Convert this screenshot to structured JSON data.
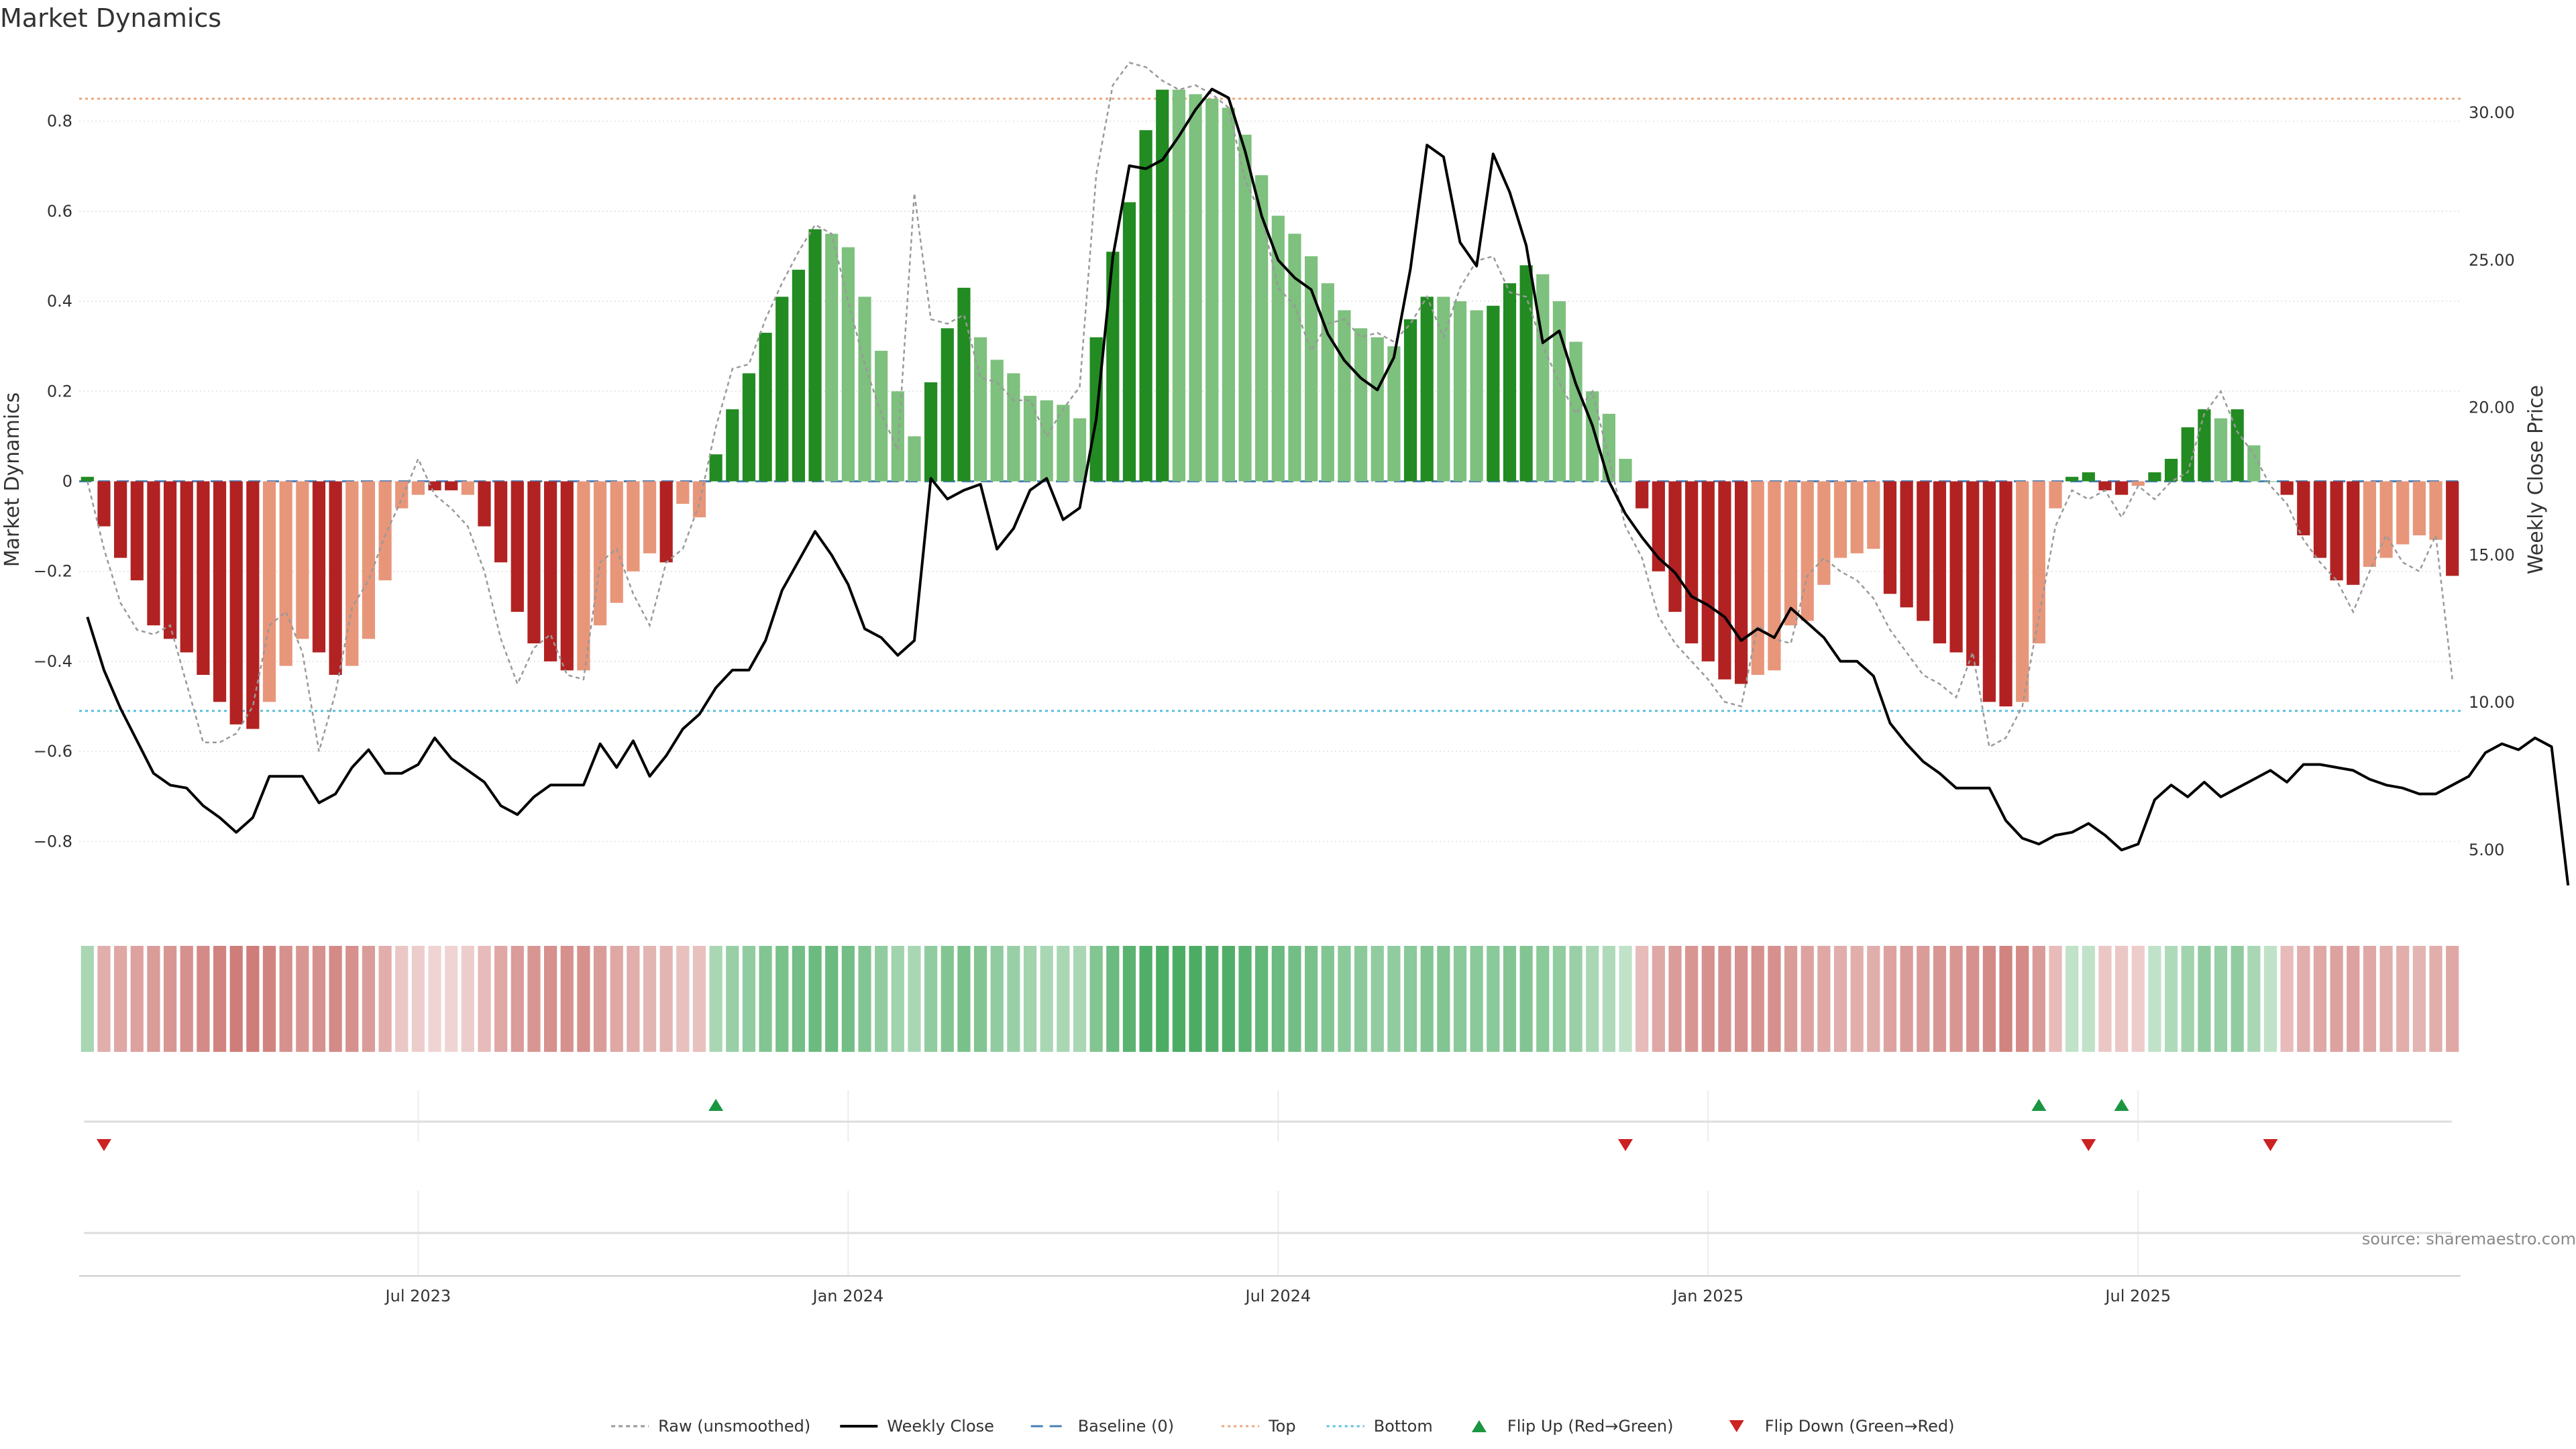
{
  "title": "Market Dynamics",
  "source": "source: sharemaestro.com",
  "chart_data": {
    "type": "bar",
    "ylabel_left": "Market Dynamics",
    "ylabel_right": "Weekly Close Price",
    "ylim_left": [
      -0.95,
      0.95
    ],
    "ylim_right": [
      3.0,
      32.0
    ],
    "yticks_left": [
      0.8,
      0.6,
      0.4,
      0.2,
      0,
      -0.2,
      -0.4,
      -0.6,
      -0.8
    ],
    "yticks_left_labels": [
      "0.8",
      "0.6",
      "0.4",
      "0.2",
      "0",
      "−0.2",
      "−0.4",
      "−0.6",
      "−0.8"
    ],
    "yticks_right": [
      30,
      25,
      20,
      15,
      10,
      5
    ],
    "yticks_right_labels": [
      "30.00",
      "25.00",
      "20.00",
      "15.00",
      "10.00",
      "5.00"
    ],
    "x_ticks": [
      {
        "label": "Jul 2023",
        "index": 20
      },
      {
        "label": "Jan 2024",
        "index": 46
      },
      {
        "label": "Jul 2024",
        "index": 72
      },
      {
        "label": "Jan 2025",
        "index": 98
      },
      {
        "label": "Jul 2025",
        "index": 124
      }
    ],
    "top_line": 0.85,
    "bottom_line": -0.51,
    "baseline": 0,
    "colors": {
      "strong_green": "#228b22",
      "light_green": "#7ec07e",
      "strong_red": "#b22222",
      "light_red": "#e8967a",
      "raw": "#999999",
      "close": "#000000",
      "baseline": "#4a7fb5",
      "top": "#e8a87c",
      "bottom": "#5bc0de",
      "flip_up": "#1a9641",
      "flip_down": "#cc2222"
    },
    "bars": [
      0.01,
      -0.1,
      -0.17,
      -0.22,
      -0.32,
      -0.35,
      -0.38,
      -0.43,
      -0.49,
      -0.54,
      -0.55,
      -0.49,
      -0.41,
      -0.35,
      -0.38,
      -0.43,
      -0.41,
      -0.35,
      -0.22,
      -0.06,
      -0.03,
      -0.02,
      -0.02,
      -0.03,
      -0.1,
      -0.18,
      -0.29,
      -0.36,
      -0.4,
      -0.42,
      -0.42,
      -0.32,
      -0.27,
      -0.2,
      -0.16,
      -0.18,
      -0.05,
      -0.08,
      0.06,
      0.16,
      0.24,
      0.33,
      0.41,
      0.47,
      0.56,
      0.55,
      0.52,
      0.41,
      0.29,
      0.2,
      0.1,
      0.22,
      0.34,
      0.43,
      0.32,
      0.27,
      0.24,
      0.19,
      0.18,
      0.17,
      0.14,
      0.32,
      0.51,
      0.62,
      0.78,
      0.87,
      0.87,
      0.86,
      0.85,
      0.83,
      0.77,
      0.68,
      0.59,
      0.55,
      0.5,
      0.44,
      0.38,
      0.34,
      0.32,
      0.3,
      0.36,
      0.41,
      0.41,
      0.4,
      0.38,
      0.39,
      0.44,
      0.48,
      0.46,
      0.4,
      0.31,
      0.2,
      0.15,
      0.05,
      -0.06,
      -0.2,
      -0.29,
      -0.36,
      -0.4,
      -0.44,
      -0.45,
      -0.43,
      -0.42,
      -0.32,
      -0.31,
      -0.23,
      -0.17,
      -0.16,
      -0.15,
      -0.25,
      -0.28,
      -0.31,
      -0.36,
      -0.38,
      -0.41,
      -0.49,
      -0.5,
      -0.49,
      -0.36,
      -0.06,
      0.01,
      0.02,
      -0.02,
      -0.03,
      -0.01,
      0.02,
      0.05,
      0.12,
      0.16,
      0.14,
      0.16,
      0.08,
      0.0,
      -0.03,
      -0.12,
      -0.17,
      -0.22,
      -0.23,
      -0.19,
      -0.17,
      -0.14,
      -0.12,
      -0.13,
      -0.21
    ],
    "bar_strength": [
      2,
      2,
      2,
      2,
      2,
      2,
      2,
      2,
      2,
      2,
      2,
      1,
      1,
      1,
      2,
      2,
      1,
      1,
      1,
      1,
      1,
      2,
      2,
      1,
      2,
      2,
      2,
      2,
      2,
      2,
      1,
      1,
      1,
      1,
      1,
      2,
      1,
      1,
      2,
      2,
      2,
      2,
      2,
      2,
      2,
      1,
      1,
      1,
      1,
      1,
      1,
      2,
      2,
      2,
      1,
      1,
      1,
      1,
      1,
      1,
      1,
      2,
      2,
      2,
      2,
      2,
      1,
      1,
      1,
      1,
      1,
      1,
      1,
      1,
      1,
      1,
      1,
      1,
      1,
      1,
      2,
      2,
      1,
      1,
      1,
      2,
      2,
      2,
      1,
      1,
      1,
      1,
      1,
      1,
      2,
      2,
      2,
      2,
      2,
      2,
      2,
      1,
      1,
      1,
      1,
      1,
      1,
      1,
      1,
      2,
      2,
      2,
      2,
      2,
      2,
      2,
      2,
      1,
      1,
      1,
      2,
      2,
      2,
      2,
      1,
      2,
      2,
      2,
      2,
      1,
      2,
      1,
      1,
      2,
      2,
      2,
      2,
      2,
      1,
      1,
      1,
      1,
      1,
      2
    ],
    "raw": [
      0.0,
      -0.15,
      -0.27,
      -0.33,
      -0.34,
      -0.32,
      -0.45,
      -0.58,
      -0.58,
      -0.56,
      -0.5,
      -0.32,
      -0.29,
      -0.38,
      -0.6,
      -0.47,
      -0.28,
      -0.22,
      -0.12,
      -0.04,
      0.05,
      -0.03,
      -0.06,
      -0.1,
      -0.2,
      -0.35,
      -0.45,
      -0.37,
      -0.34,
      -0.43,
      -0.44,
      -0.18,
      -0.15,
      -0.25,
      -0.32,
      -0.18,
      -0.15,
      -0.05,
      0.12,
      0.25,
      0.26,
      0.36,
      0.44,
      0.51,
      0.57,
      0.55,
      0.4,
      0.26,
      0.15,
      0.07,
      0.64,
      0.36,
      0.35,
      0.37,
      0.23,
      0.22,
      0.18,
      0.18,
      0.1,
      0.16,
      0.21,
      0.68,
      0.88,
      0.93,
      0.92,
      0.89,
      0.87,
      0.88,
      0.86,
      0.83,
      0.67,
      0.59,
      0.43,
      0.39,
      0.29,
      0.35,
      0.36,
      0.32,
      0.33,
      0.31,
      0.35,
      0.41,
      0.32,
      0.43,
      0.49,
      0.5,
      0.42,
      0.41,
      0.3,
      0.22,
      0.15,
      0.2,
      0.05,
      -0.1,
      -0.17,
      -0.3,
      -0.36,
      -0.4,
      -0.44,
      -0.49,
      -0.5,
      -0.32,
      -0.35,
      -0.36,
      -0.21,
      -0.17,
      -0.2,
      -0.22,
      -0.26,
      -0.33,
      -0.38,
      -0.43,
      -0.45,
      -0.48,
      -0.38,
      -0.59,
      -0.57,
      -0.5,
      -0.3,
      -0.1,
      -0.02,
      -0.04,
      -0.02,
      -0.08,
      -0.01,
      -0.04,
      0.0,
      0.02,
      0.15,
      0.2,
      0.11,
      0.06,
      -0.01,
      -0.05,
      -0.13,
      -0.18,
      -0.22,
      -0.29,
      -0.2,
      -0.12,
      -0.18,
      -0.2,
      -0.12,
      -0.44
    ],
    "close": [
      12.9,
      11.1,
      9.8,
      8.7,
      7.6,
      7.2,
      7.1,
      6.5,
      6.1,
      5.6,
      6.1,
      7.5,
      7.5,
      7.5,
      6.6,
      6.9,
      7.8,
      8.4,
      7.6,
      7.6,
      7.9,
      8.8,
      8.1,
      7.7,
      7.3,
      6.5,
      6.2,
      6.8,
      7.2,
      7.2,
      7.2,
      8.6,
      7.8,
      8.7,
      7.5,
      8.2,
      9.1,
      9.6,
      10.5,
      11.1,
      11.1,
      12.1,
      13.8,
      14.8,
      15.8,
      15.0,
      14.0,
      12.5,
      12.2,
      11.6,
      12.1,
      17.6,
      16.9,
      17.2,
      17.4,
      15.2,
      15.9,
      17.2,
      17.6,
      16.2,
      16.6,
      19.6,
      25.1,
      28.2,
      28.1,
      28.4,
      29.2,
      30.1,
      30.8,
      30.5,
      28.7,
      26.5,
      25.0,
      24.4,
      24.0,
      22.5,
      21.6,
      21.0,
      20.6,
      21.7,
      24.7,
      28.9,
      28.5,
      25.6,
      24.8,
      28.6,
      27.3,
      25.5,
      22.2,
      22.6,
      20.8,
      19.4,
      17.5,
      16.4,
      15.6,
      14.9,
      14.4,
      13.6,
      13.3,
      12.9,
      12.1,
      12.5,
      12.2,
      13.2,
      12.7,
      12.2,
      11.4,
      11.4,
      10.9,
      9.3,
      8.6,
      8.0,
      7.6,
      7.1,
      7.1,
      7.1,
      6.0,
      5.4,
      5.2,
      5.5,
      5.6,
      5.9,
      5.5,
      5.0,
      5.2,
      6.7,
      7.2,
      6.8,
      7.3,
      6.8,
      7.1,
      7.4,
      7.7,
      7.3,
      7.9,
      7.9,
      7.8,
      7.7,
      7.4,
      7.2,
      7.1,
      6.9,
      6.9,
      7.2,
      7.5,
      8.3,
      8.6,
      8.4,
      8.8,
      8.5,
      3.8
    ],
    "heat_intensity": [
      0.35,
      0.45,
      0.5,
      0.55,
      0.6,
      0.65,
      0.7,
      0.75,
      0.8,
      0.85,
      0.85,
      0.8,
      0.7,
      0.65,
      0.7,
      0.75,
      0.7,
      0.6,
      0.45,
      0.25,
      0.2,
      0.15,
      0.15,
      0.2,
      0.35,
      0.5,
      0.6,
      0.65,
      0.7,
      0.7,
      0.7,
      0.6,
      0.5,
      0.45,
      0.4,
      0.4,
      0.3,
      0.3,
      0.35,
      0.45,
      0.5,
      0.6,
      0.65,
      0.7,
      0.75,
      0.75,
      0.7,
      0.6,
      0.5,
      0.4,
      0.35,
      0.5,
      0.6,
      0.65,
      0.6,
      0.5,
      0.45,
      0.4,
      0.35,
      0.35,
      0.35,
      0.6,
      0.75,
      0.85,
      0.9,
      0.95,
      0.95,
      0.95,
      0.9,
      0.9,
      0.85,
      0.8,
      0.75,
      0.7,
      0.65,
      0.6,
      0.55,
      0.55,
      0.5,
      0.5,
      0.55,
      0.6,
      0.6,
      0.55,
      0.55,
      0.55,
      0.6,
      0.6,
      0.55,
      0.5,
      0.45,
      0.35,
      0.3,
      0.2,
      0.35,
      0.5,
      0.6,
      0.65,
      0.7,
      0.7,
      0.7,
      0.7,
      0.7,
      0.6,
      0.55,
      0.5,
      0.45,
      0.45,
      0.45,
      0.55,
      0.6,
      0.6,
      0.65,
      0.65,
      0.7,
      0.75,
      0.8,
      0.75,
      0.6,
      0.35,
      0.2,
      0.2,
      0.25,
      0.25,
      0.2,
      0.2,
      0.3,
      0.4,
      0.5,
      0.45,
      0.5,
      0.35,
      0.2,
      0.35,
      0.45,
      0.5,
      0.55,
      0.55,
      0.5,
      0.45,
      0.45,
      0.4,
      0.45,
      0.5
    ],
    "flips_up": [
      38,
      118,
      123
    ],
    "flips_down": [
      1,
      93,
      121,
      132
    ],
    "legend": [
      {
        "key": "raw",
        "label": "Raw (unsmoothed)"
      },
      {
        "key": "close",
        "label": "Weekly Close"
      },
      {
        "key": "baseline",
        "label": "Baseline (0)"
      },
      {
        "key": "top",
        "label": "Top"
      },
      {
        "key": "bottom",
        "label": "Bottom"
      },
      {
        "key": "flip_up",
        "label": "Flip Up (Red→Green)"
      },
      {
        "key": "flip_down",
        "label": "Flip Down (Green→Red)"
      }
    ]
  }
}
